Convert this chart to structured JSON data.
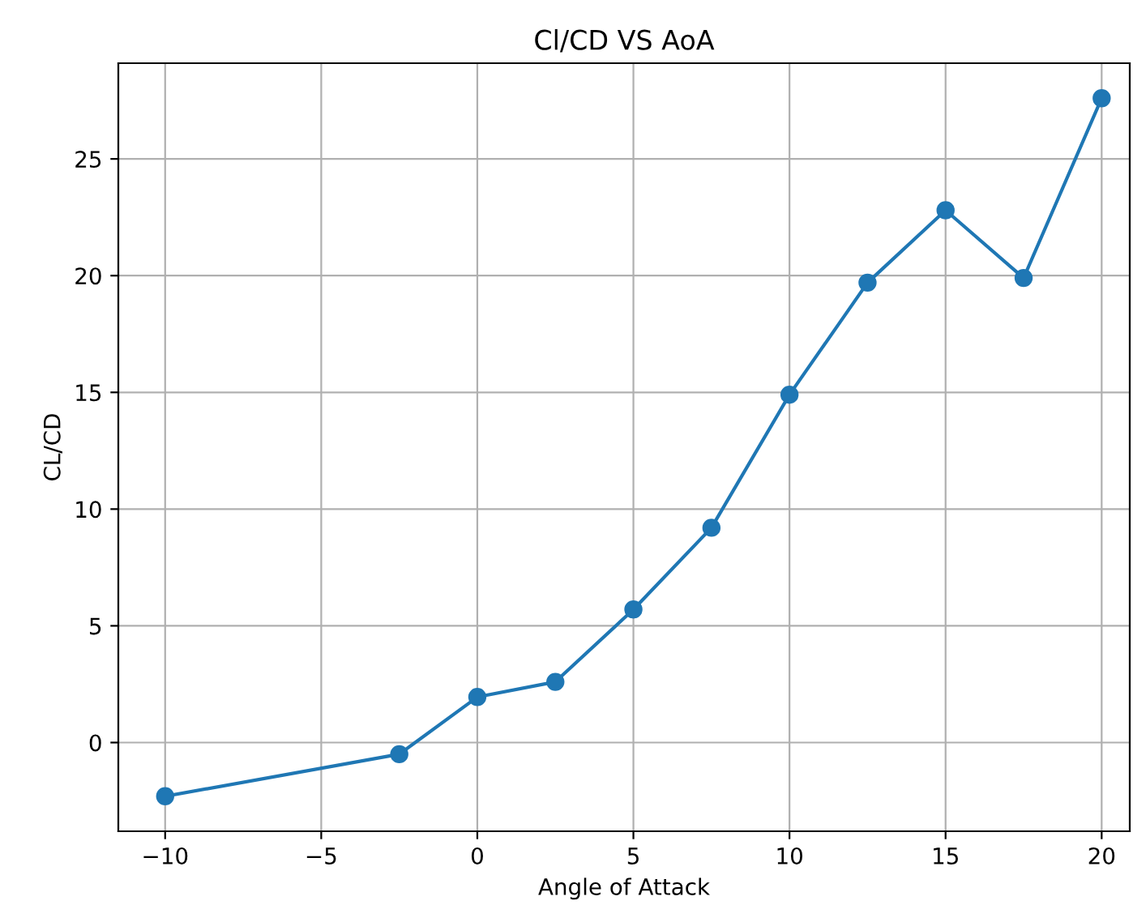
{
  "chart_data": {
    "type": "line",
    "title": "Cl/CD VS AoA",
    "xlabel": "Angle of Attack",
    "ylabel": "CL/CD",
    "x": [
      -10,
      -2.5,
      0,
      2.5,
      5,
      7.5,
      10,
      12.5,
      15,
      17.5,
      20
    ],
    "series": [
      {
        "color": "#1f77b4",
        "values": [
          -2.3,
          -0.5,
          1.95,
          2.6,
          5.7,
          9.2,
          14.9,
          19.7,
          22.8,
          19.9,
          27.6
        ]
      }
    ],
    "xlim": [
      -11.5,
      20.9
    ],
    "xticks": [
      -10,
      -5,
      0,
      5,
      10,
      15,
      20
    ],
    "ylim": [
      -3.8,
      29.1
    ],
    "yticks": [
      0,
      5,
      10,
      15,
      20,
      25
    ],
    "grid": true,
    "marker": "circle",
    "line_style": "solid"
  }
}
